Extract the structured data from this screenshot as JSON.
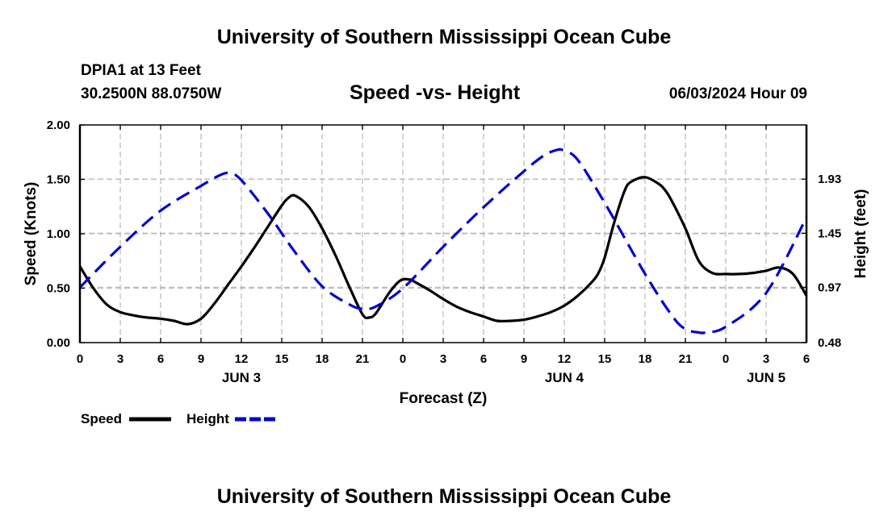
{
  "page": {
    "header": "University of Southern Mississippi Ocean Cube",
    "footer": "University of Southern Mississippi Ocean Cube",
    "station": "DPIA1 at 13 Feet",
    "location": "30.2500N  88.0750W",
    "timestamp": "06/03/2024 Hour 09"
  },
  "chart_data": {
    "type": "line",
    "title": "Speed -vs- Height",
    "xlabel": "Forecast (Z)",
    "ylabel": "Speed (Knots)",
    "y2label": "Height (feet)",
    "xlim": [
      0,
      54
    ],
    "ylim": [
      0,
      2.0
    ],
    "y2lim": [
      0.48,
      2.41
    ],
    "x_ticks": [
      0,
      3,
      6,
      9,
      12,
      15,
      18,
      21,
      24,
      27,
      30,
      33,
      36,
      39,
      42,
      45,
      48,
      51,
      54
    ],
    "x_tick_labels": [
      "0",
      "3",
      "6",
      "9",
      "12",
      "15",
      "18",
      "21",
      "0",
      "3",
      "6",
      "9",
      "12",
      "15",
      "18",
      "21",
      "0",
      "3",
      "6"
    ],
    "y_ticks": [
      0,
      0.5,
      1.0,
      1.5,
      2.0
    ],
    "y_tick_labels": [
      "0.00",
      "0.50",
      "1.00",
      "1.50",
      "2.00"
    ],
    "y2_ticks": [
      0.48,
      0.97,
      1.45,
      1.93
    ],
    "y2_tick_labels": [
      "0.48",
      "0.97",
      "1.45",
      "1.93"
    ],
    "date_labels": [
      {
        "label": "JUN 3",
        "x": 12
      },
      {
        "label": "JUN 4",
        "x": 36
      },
      {
        "label": "JUN 5",
        "x": 51
      }
    ],
    "grid": true,
    "legend_position": "bottom-left",
    "series": [
      {
        "name": "Speed",
        "axis": "left",
        "color": "#000000",
        "style": "solid",
        "x": [
          0,
          1,
          2,
          3,
          4,
          5,
          6,
          7,
          8,
          9,
          10,
          11,
          12,
          13,
          14,
          15,
          15.5,
          16,
          17,
          18,
          19,
          20,
          21,
          21.5,
          22,
          23,
          23.8,
          24.5,
          25,
          26,
          27,
          28,
          29,
          30,
          31,
          32,
          33,
          34,
          35,
          36,
          37,
          38,
          38.5,
          39,
          39.7,
          40.5,
          41,
          42,
          43,
          43.5,
          44,
          45,
          46,
          47,
          48,
          49,
          50,
          50.5,
          51,
          52,
          53,
          54
        ],
        "values": [
          0.7,
          0.5,
          0.35,
          0.28,
          0.25,
          0.23,
          0.22,
          0.2,
          0.17,
          0.22,
          0.36,
          0.53,
          0.7,
          0.88,
          1.07,
          1.26,
          1.33,
          1.35,
          1.25,
          1.05,
          0.8,
          0.52,
          0.26,
          0.23,
          0.27,
          0.46,
          0.57,
          0.58,
          0.55,
          0.48,
          0.4,
          0.33,
          0.28,
          0.24,
          0.2,
          0.2,
          0.21,
          0.24,
          0.28,
          0.34,
          0.43,
          0.55,
          0.63,
          0.78,
          1.1,
          1.4,
          1.48,
          1.52,
          1.46,
          1.4,
          1.3,
          1.05,
          0.75,
          0.64,
          0.63,
          0.63,
          0.64,
          0.65,
          0.66,
          0.69,
          0.63,
          0.43
        ]
      },
      {
        "name": "Height",
        "axis": "right",
        "color": "#0000cc",
        "style": "dashed",
        "x": [
          0,
          3,
          6,
          9,
          10.5,
          11.2,
          12,
          14,
          16,
          18,
          20,
          21,
          22,
          24,
          27,
          30,
          33,
          34.5,
          35.5,
          36,
          37,
          39,
          42,
          44,
          45,
          46,
          46.5,
          48,
          51,
          54
        ],
        "values": [
          0.97,
          1.33,
          1.65,
          1.87,
          1.97,
          1.98,
          1.92,
          1.62,
          1.28,
          0.98,
          0.82,
          0.78,
          0.8,
          0.96,
          1.33,
          1.68,
          2.0,
          2.14,
          2.19,
          2.18,
          2.1,
          1.72,
          1.09,
          0.72,
          0.6,
          0.57,
          0.57,
          0.62,
          0.92,
          1.59
        ]
      }
    ]
  }
}
